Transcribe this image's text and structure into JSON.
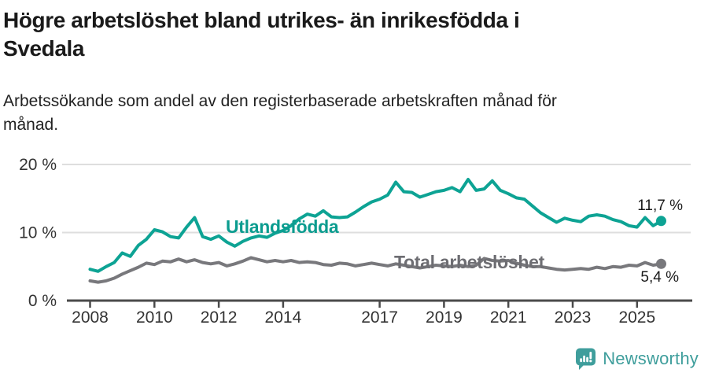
{
  "title": {
    "line1": "Högre arbetslöshet bland utrikes- än inrikesfödda i",
    "line2": "Svedala"
  },
  "subtitle": {
    "line1": "Arbetssökande som andel av den registerbaserade arbetskraften månad för",
    "line2": "månad."
  },
  "footer": {
    "brand": "Newsworthy",
    "logo_icon": "speech-bubble-bar-chart-icon"
  },
  "colors": {
    "foreign_line": "#0da394",
    "foreign_label": "#0b9c8f",
    "total_line": "#78787c",
    "total_label": "#6d6d72",
    "grid": "#dedede",
    "axis": "#4a4a4a",
    "axis_text": "#333333",
    "annotation_text": "#1a1a1a",
    "brand_teal": "#3f9e9c",
    "title_text": "#1a1a1a"
  },
  "chart_data": {
    "type": "line",
    "title": "Högre arbetslöshet bland utrikes- än inrikesfödda i Svedala",
    "subtitle": "Arbetssökande som andel av den registerbaserade arbetskraften månad för månad.",
    "x_unit": "year (quarterly samples)",
    "x_start": 2008.0,
    "x_step": 0.25,
    "xlim": [
      2007.3,
      2026.7
    ],
    "ylim": [
      0,
      20
    ],
    "grid": "horizontal-only",
    "legend_position": "inline-labels",
    "yticks": [
      {
        "value": 0,
        "label": "0 %"
      },
      {
        "value": 10,
        "label": "10 %"
      },
      {
        "value": 20,
        "label": "20 %"
      }
    ],
    "xticks": [
      {
        "value": 2008,
        "label": "2008"
      },
      {
        "value": 2010,
        "label": "2010"
      },
      {
        "value": 2012,
        "label": "2012"
      },
      {
        "value": 2014,
        "label": "2014"
      },
      {
        "value": 2017,
        "label": "2017"
      },
      {
        "value": 2019,
        "label": "2019"
      },
      {
        "value": 2021,
        "label": "2021"
      },
      {
        "value": 2023,
        "label": "2023"
      },
      {
        "value": 2025,
        "label": "2025"
      }
    ],
    "series": [
      {
        "name": "Utlandsfödda",
        "end_label": "11,7 %",
        "end_value": 11.7,
        "values": [
          4.6,
          4.3,
          5.0,
          5.6,
          7.0,
          6.5,
          8.1,
          9.0,
          10.4,
          10.1,
          9.4,
          9.2,
          10.8,
          12.2,
          9.4,
          9.0,
          9.5,
          8.6,
          8.0,
          8.7,
          9.2,
          9.5,
          9.3,
          9.9,
          10.3,
          11.0,
          12.0,
          12.7,
          12.4,
          13.2,
          12.3,
          12.2,
          12.3,
          13.0,
          13.8,
          14.5,
          14.9,
          15.5,
          17.4,
          16.0,
          15.9,
          15.2,
          15.6,
          16.0,
          16.2,
          16.6,
          16.0,
          17.8,
          16.2,
          16.4,
          17.6,
          16.2,
          15.7,
          15.1,
          14.9,
          13.9,
          12.9,
          12.2,
          11.5,
          12.1,
          11.8,
          11.6,
          12.4,
          12.6,
          12.4,
          11.9,
          11.6,
          11.0,
          10.8,
          12.2,
          11.0,
          11.7
        ]
      },
      {
        "name": "Total arbetslöshet",
        "end_label": "5,4 %",
        "end_value": 5.4,
        "values": [
          2.9,
          2.7,
          2.9,
          3.3,
          3.9,
          4.4,
          4.9,
          5.5,
          5.3,
          5.8,
          5.7,
          6.1,
          5.7,
          6.0,
          5.6,
          5.4,
          5.6,
          5.1,
          5.4,
          5.8,
          6.3,
          6.0,
          5.7,
          5.9,
          5.7,
          5.9,
          5.6,
          5.7,
          5.6,
          5.3,
          5.2,
          5.5,
          5.4,
          5.1,
          5.3,
          5.5,
          5.3,
          5.1,
          5.4,
          5.2,
          5.0,
          4.8,
          5.0,
          5.2,
          5.1,
          5.0,
          5.2,
          5.0,
          5.2,
          6.2,
          5.9,
          5.8,
          5.9,
          5.5,
          5.2,
          5.0,
          5.0,
          4.8,
          4.6,
          4.5,
          4.6,
          4.7,
          4.6,
          4.9,
          4.7,
          5.0,
          4.9,
          5.2,
          5.1,
          5.6,
          5.2,
          5.4
        ]
      }
    ]
  }
}
